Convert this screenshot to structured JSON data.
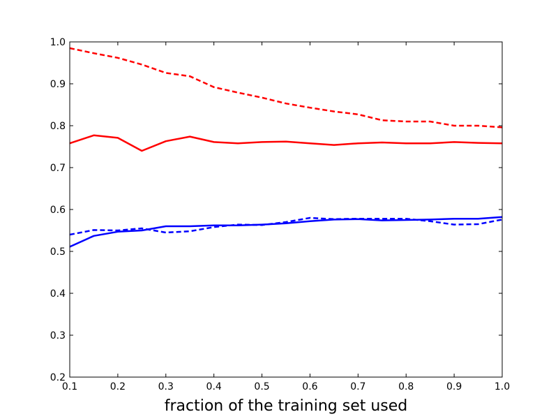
{
  "chart_data": {
    "type": "line",
    "title": "",
    "xlabel": "fraction of the training set used",
    "ylabel": "",
    "xlim": [
      0.1,
      1.0
    ],
    "ylim": [
      0.2,
      1.0
    ],
    "grid": false,
    "xticks": [
      "0.1",
      "0.2",
      "0.3",
      "0.4",
      "0.5",
      "0.6",
      "0.7",
      "0.8",
      "0.9",
      "1.0"
    ],
    "yticks": [
      "0.2",
      "0.3",
      "0.4",
      "0.5",
      "0.6",
      "0.7",
      "0.8",
      "0.9",
      "1.0"
    ],
    "x": [
      0.1,
      0.15,
      0.2,
      0.25,
      0.3,
      0.35,
      0.4,
      0.45,
      0.5,
      0.55,
      0.6,
      0.65,
      0.7,
      0.75,
      0.8,
      0.85,
      0.9,
      0.95,
      1.0
    ],
    "series": [
      {
        "color": "#ff0000",
        "style": "dashed",
        "values": [
          0.985,
          0.973,
          0.962,
          0.946,
          0.926,
          0.918,
          0.892,
          0.879,
          0.867,
          0.853,
          0.843,
          0.834,
          0.827,
          0.813,
          0.81,
          0.81,
          0.8,
          0.8,
          0.796
        ]
      },
      {
        "color": "#ff0000",
        "style": "solid",
        "values": [
          0.758,
          0.777,
          0.771,
          0.74,
          0.763,
          0.774,
          0.761,
          0.758,
          0.761,
          0.762,
          0.758,
          0.754,
          0.758,
          0.76,
          0.758,
          0.758,
          0.761,
          0.759,
          0.758
        ]
      },
      {
        "color": "#0000ff",
        "style": "solid",
        "values": [
          0.511,
          0.537,
          0.547,
          0.55,
          0.56,
          0.56,
          0.562,
          0.562,
          0.564,
          0.567,
          0.572,
          0.576,
          0.577,
          0.574,
          0.575,
          0.576,
          0.578,
          0.578,
          0.582
        ]
      },
      {
        "color": "#0000ff",
        "style": "dashed",
        "values": [
          0.54,
          0.551,
          0.55,
          0.555,
          0.545,
          0.548,
          0.558,
          0.564,
          0.563,
          0.57,
          0.58,
          0.577,
          0.578,
          0.578,
          0.578,
          0.572,
          0.564,
          0.565,
          0.576
        ]
      }
    ]
  }
}
